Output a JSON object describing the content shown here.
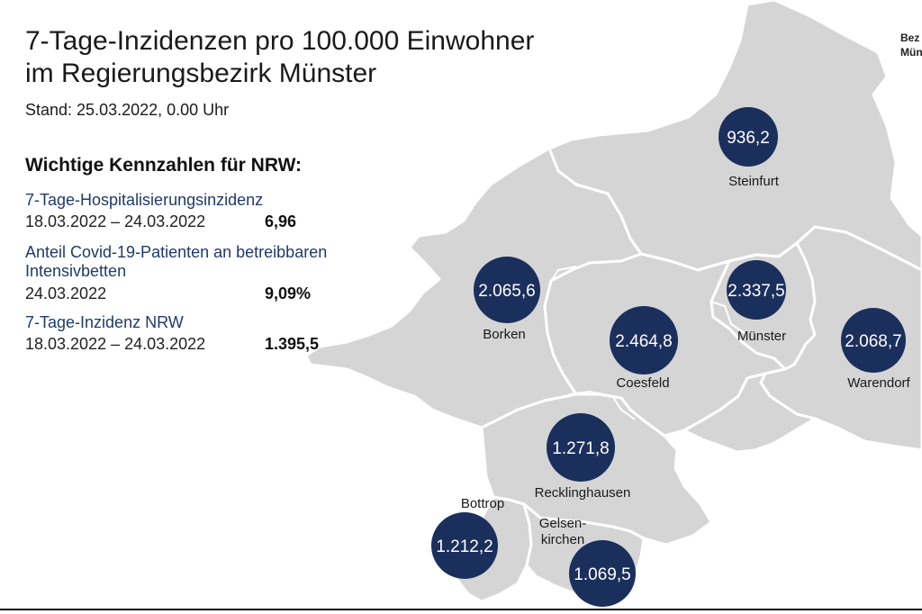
{
  "header": {
    "title_line1": "7-Tage-Inzidenzen pro 100.000 Einwohner",
    "title_line2": "im Regierungsbezirk Münster",
    "stand": "Stand: 25.03.2022, 0.00 Uhr"
  },
  "key_figures": {
    "heading": "Wichtige Kennzahlen für NRW:",
    "items": [
      {
        "label": "7-Tage-Hospitalisierungsinzidenz",
        "date": "18.03.2022 – 24.03.2022",
        "value": "6,96"
      },
      {
        "label": "Anteil Covid-19-Patienten an betreibbaren",
        "label2": "Intensivbetten",
        "date": "24.03.2022",
        "value": "9,09%"
      },
      {
        "label": "7-Tage-Inzidenz NRW",
        "date": "18.03.2022 – 24.03.2022",
        "value": "1.395,5"
      }
    ]
  },
  "corner_label": {
    "line1": "Bez",
    "line2": "Mün"
  },
  "colors": {
    "region_fill": "#d5d5d5",
    "region_border": "#ffffff",
    "marker_fill": "#1b2f5c",
    "marker_text": "#ffffff",
    "title_accent": "#1f3a6b"
  },
  "regions": [
    {
      "name": "Steinfurt",
      "value": "936,2"
    },
    {
      "name": "Borken",
      "value": "2.065,6"
    },
    {
      "name": "Münster",
      "value": "2.337,5"
    },
    {
      "name": "Coesfeld",
      "value": "2.464,8"
    },
    {
      "name": "Warendorf",
      "value": "2.068,7"
    },
    {
      "name": "Recklinghausen",
      "value": "1.271,8"
    },
    {
      "name": "Bottrop",
      "value": "1.212,2"
    },
    {
      "name": "Gelsen-",
      "name2": "kirchen",
      "value": "1.069,5"
    }
  ]
}
